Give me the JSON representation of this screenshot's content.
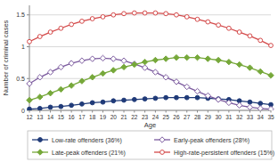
{
  "chart_data": {
    "type": "line",
    "x_label": "Age",
    "y_label": "Number of criminal cases",
    "x": [
      12,
      13,
      14,
      15,
      16,
      17,
      18,
      19,
      20,
      21,
      22,
      23,
      24,
      25,
      26,
      27,
      28,
      29,
      30,
      31,
      32,
      33,
      34,
      35
    ],
    "xlim": [
      12,
      35
    ],
    "xticks": [
      12,
      13,
      14,
      15,
      16,
      17,
      18,
      19,
      20,
      21,
      22,
      23,
      24,
      25,
      26,
      27,
      28,
      29,
      30,
      31,
      32,
      33,
      34,
      35
    ],
    "ylim": [
      0,
      1.65
    ],
    "yticks": [
      0,
      0.5,
      1,
      1.5
    ],
    "grid": true,
    "legend": "bottom",
    "series": [
      {
        "name": "Low-rate offenders (36%)",
        "color": "#1f3a78",
        "marker": "circle",
        "values": [
          0.02,
          0.03,
          0.05,
          0.06,
          0.08,
          0.1,
          0.12,
          0.13,
          0.15,
          0.16,
          0.17,
          0.18,
          0.19,
          0.2,
          0.2,
          0.2,
          0.2,
          0.19,
          0.18,
          0.17,
          0.15,
          0.13,
          0.11,
          0.09
        ]
      },
      {
        "name": "Early-peak offenders (28%)",
        "color": "#7b5a9e",
        "marker": "diamond-open",
        "values": [
          0.42,
          0.52,
          0.6,
          0.68,
          0.74,
          0.78,
          0.81,
          0.82,
          0.81,
          0.78,
          0.73,
          0.67,
          0.6,
          0.52,
          0.45,
          0.37,
          0.3,
          0.23,
          0.17,
          0.12,
          0.08,
          0.05,
          0.03,
          0.02
        ]
      },
      {
        "name": "Late-peak offenders (21%)",
        "color": "#76a83a",
        "marker": "diamond",
        "values": [
          0.16,
          0.21,
          0.27,
          0.33,
          0.39,
          0.46,
          0.52,
          0.58,
          0.63,
          0.68,
          0.72,
          0.76,
          0.79,
          0.81,
          0.83,
          0.83,
          0.83,
          0.81,
          0.79,
          0.76,
          0.72,
          0.67,
          0.61,
          0.55
        ]
      },
      {
        "name": "High-rate-persistent offenders (15%)",
        "color": "#d44a4a",
        "marker": "circle-open",
        "values": [
          1.08,
          1.16,
          1.23,
          1.29,
          1.35,
          1.4,
          1.44,
          1.47,
          1.5,
          1.52,
          1.53,
          1.53,
          1.53,
          1.52,
          1.5,
          1.47,
          1.43,
          1.39,
          1.34,
          1.29,
          1.23,
          1.17,
          1.1,
          1.02
        ]
      }
    ]
  }
}
